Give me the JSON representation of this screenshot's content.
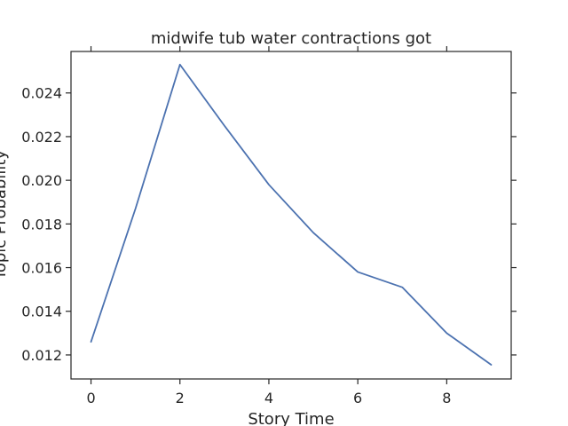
{
  "chart_data": {
    "type": "line",
    "title": "midwife tub water contractions got",
    "xlabel": "Story Time",
    "ylabel": "Topic Probability",
    "x": [
      0,
      1,
      2,
      3,
      4,
      5,
      6,
      7,
      8,
      9
    ],
    "series": [
      {
        "values": [
          0.0126,
          0.0187,
          0.0253,
          0.0225,
          0.0198,
          0.0176,
          0.0158,
          0.0151,
          0.013,
          0.01155
        ],
        "color": "#4c72b0"
      }
    ],
    "xlim": [
      -0.45,
      9.45
    ],
    "ylim": [
      0.0109,
      0.0259
    ],
    "xticks": [
      0,
      2,
      4,
      6,
      8
    ],
    "yticks": [
      0.012,
      0.014,
      0.016,
      0.018,
      0.02,
      0.022,
      0.024
    ],
    "xtick_labels": [
      "0",
      "2",
      "4",
      "6",
      "8"
    ],
    "ytick_labels": [
      "0.012",
      "0.014",
      "0.016",
      "0.018",
      "0.020",
      "0.022",
      "0.024"
    ],
    "grid": false,
    "legend": "none"
  }
}
